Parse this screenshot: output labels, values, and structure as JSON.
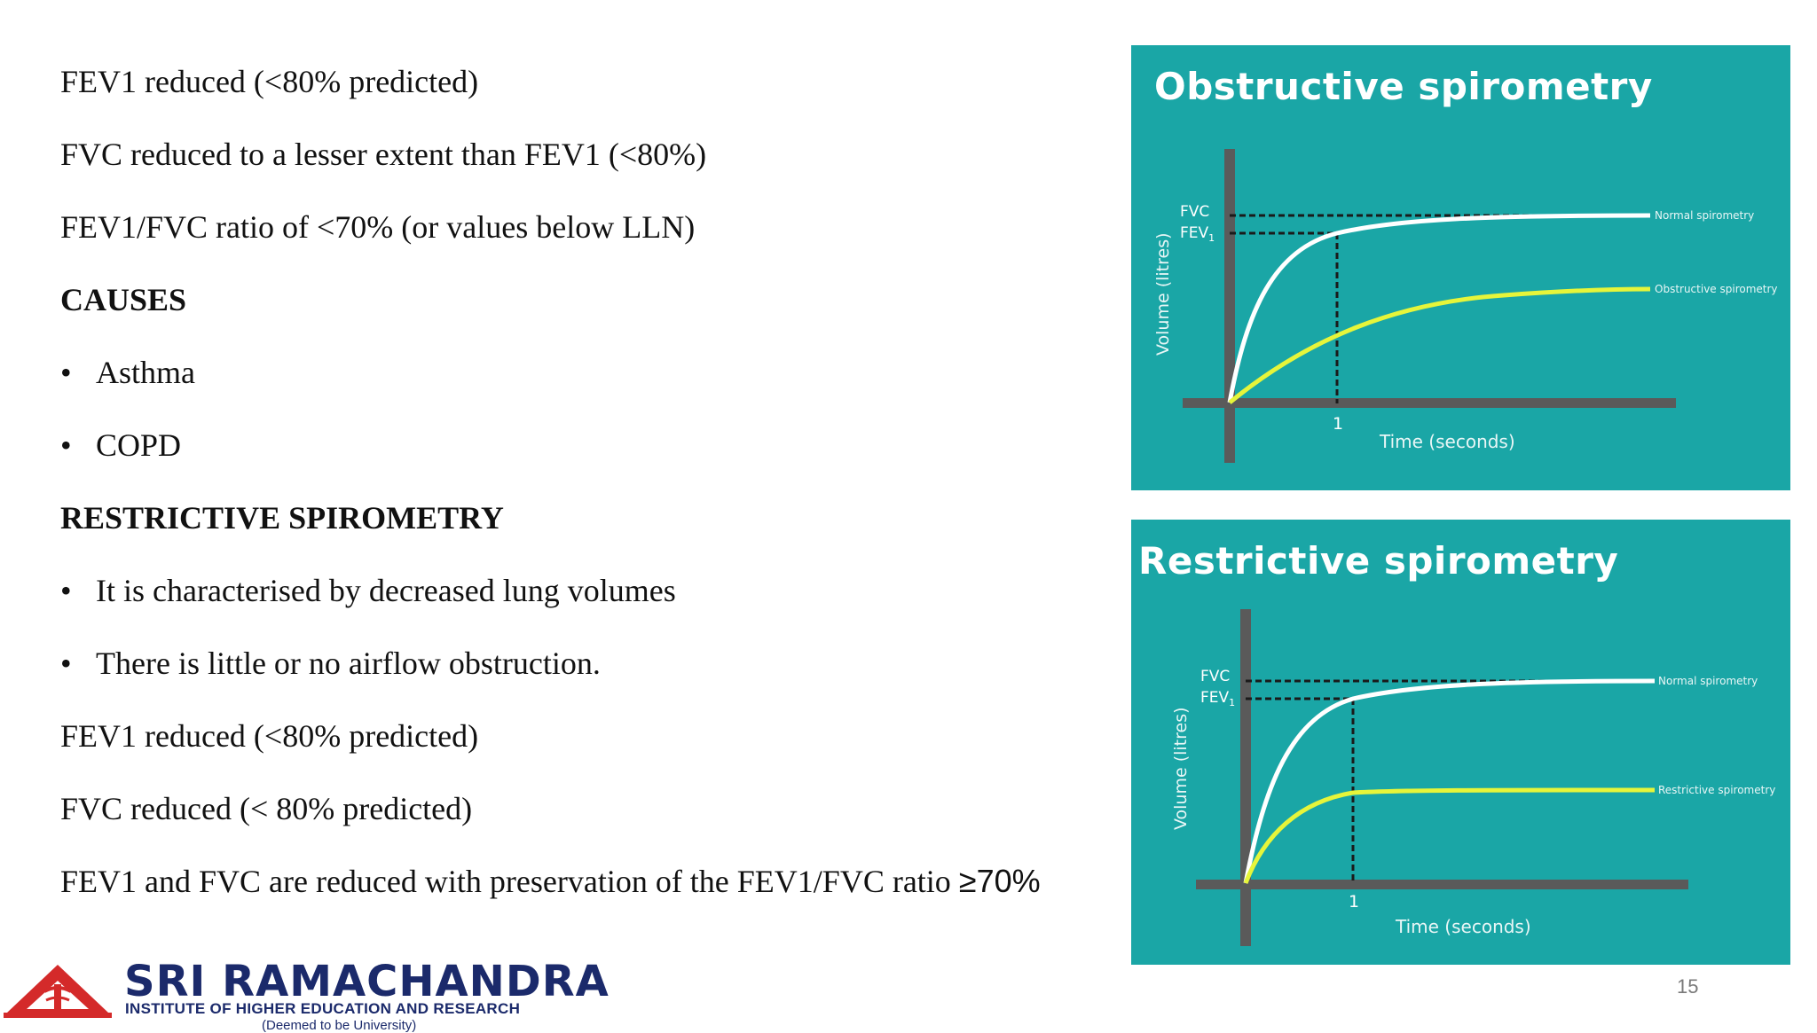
{
  "slide": {
    "lines": [
      {
        "text": "FEV1 reduced (<80% predicted)"
      },
      {
        "text": "FVC reduced to a lesser extent than FEV1 (<80%)"
      },
      {
        "text": "FEV1/FVC ratio of <70%  (or values below LLN)"
      },
      {
        "text": "CAUSES"
      },
      {
        "bullet": "•",
        "text": "Asthma"
      },
      {
        "bullet": "•",
        "text": "COPD"
      },
      {
        "text": "RESTRICTIVE SPIROMETRY"
      },
      {
        "bullet": "•",
        "text": "It is characterised by decreased lung volumes"
      },
      {
        "bullet": "•",
        "text": "There is little or no airflow obstruction."
      },
      {
        "text": "FEV1 reduced (<80% predicted)"
      },
      {
        "text": "FVC reduced (< 80% predicted)"
      },
      {
        "text": "FEV1 and FVC are reduced with preservation of the FEV1/FVC ratio ",
        "suffix": "≥70%"
      }
    ],
    "page_number": "15"
  },
  "figures": {
    "obstructive": {
      "title": "Obstructive spirometry",
      "fvc_label": "FVC",
      "fev_label": "FEV",
      "fev_sub": "1",
      "y_axis": "Volume (litres)",
      "x_axis": "Time (seconds)",
      "x_tick": "1",
      "normal_label": "Normal spirometry",
      "abnormal_label": "Obstructive spirometry"
    },
    "restrictive": {
      "title": "Restrictive spirometry",
      "fvc_label": "FVC",
      "fev_label": "FEV",
      "fev_sub": "1",
      "y_axis": "Volume (litres)",
      "x_axis": "Time (seconds)",
      "x_tick": "1",
      "normal_label": "Normal spirometry",
      "abnormal_label": "Restrictive spirometry"
    }
  },
  "logo": {
    "name": "SRI RAMACHANDRA",
    "subtitle": "INSTITUTE OF HIGHER EDUCATION AND RESEARCH",
    "deemed": "(Deemed to be University)"
  },
  "colors": {
    "panel": "#1aa6a6",
    "normal_curve": "#ffffff",
    "abnormal_curve": "#e6f53a",
    "axis": "#5a5a5a",
    "logo": "#1b2a6b",
    "logo_emblem": "#d42a2a"
  }
}
